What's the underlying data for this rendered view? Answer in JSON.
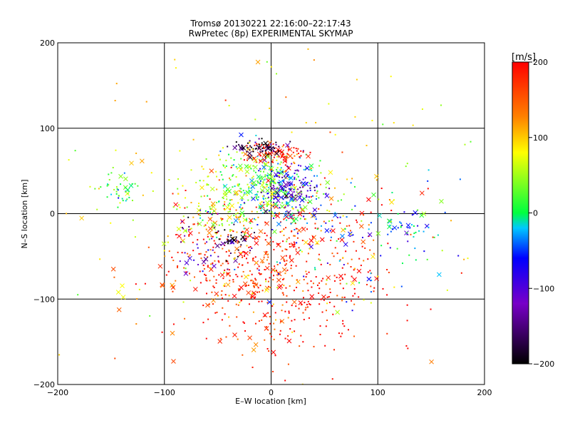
{
  "chart_data": {
    "type": "scatter",
    "title": "Tromsø 20130221 22:16:00–22:17:43",
    "subtitle": "RwPretec (8p) EXPERIMENTAL SKYMAP",
    "xlabel": "E–W location [km]",
    "ylabel": "N–S location [km]",
    "xlim": [
      -200,
      200
    ],
    "ylim": [
      -200,
      200
    ],
    "xticks": [
      -200,
      -100,
      0,
      100,
      200
    ],
    "yticks": [
      -200,
      -100,
      0,
      100,
      200
    ],
    "xtick_labels": [
      "−200",
      "−100",
      "0",
      "100",
      "200"
    ],
    "ytick_labels": [
      "−200",
      "−100",
      "0",
      "100",
      "200"
    ],
    "grid": true,
    "colorbar": {
      "label": "[m/s]",
      "range": [
        -200,
        200
      ],
      "ticks": [
        200,
        100,
        0,
        -100,
        -200
      ],
      "tick_labels": [
        "200",
        "100",
        "0",
        "−100",
        "−200"
      ],
      "colormap": "rainbow: black (-200) → blue → cyan → green (0) → yellow → red (200)"
    },
    "clusters": [
      {
        "x": 15,
        "y": -70,
        "sx": 50,
        "sy": 55,
        "v": 185,
        "n": 420
      },
      {
        "x": -30,
        "y": -60,
        "sx": 45,
        "sy": 40,
        "v": 170,
        "n": 260
      },
      {
        "x": 0,
        "y": 30,
        "sx": 25,
        "sy": 22,
        "v": 20,
        "n": 300
      },
      {
        "x": 15,
        "y": 30,
        "sx": 15,
        "sy": 15,
        "v": -100,
        "n": 150
      },
      {
        "x": 5,
        "y": 70,
        "sx": 15,
        "sy": 8,
        "v": 190,
        "n": 90
      },
      {
        "x": -10,
        "y": 78,
        "sx": 12,
        "sy": 5,
        "v": -190,
        "n": 60
      },
      {
        "x": -50,
        "y": 10,
        "sx": 20,
        "sy": 25,
        "v": 60,
        "n": 120
      },
      {
        "x": -145,
        "y": 30,
        "sx": 10,
        "sy": 10,
        "v": 20,
        "n": 45
      },
      {
        "x": 130,
        "y": -15,
        "sx": 12,
        "sy": 10,
        "v": -30,
        "n": 35
      },
      {
        "x": -60,
        "y": -35,
        "sx": 15,
        "sy": 15,
        "v": -120,
        "n": 40
      },
      {
        "x": -35,
        "y": -30,
        "sx": 10,
        "sy": 10,
        "v": -190,
        "n": 30
      },
      {
        "x": 80,
        "y": -30,
        "sx": 50,
        "sy": 35,
        "v": -40,
        "n": 90
      },
      {
        "x": 0,
        "y": 0,
        "sx": 90,
        "sy": 90,
        "v": 80,
        "n": 200
      }
    ]
  }
}
